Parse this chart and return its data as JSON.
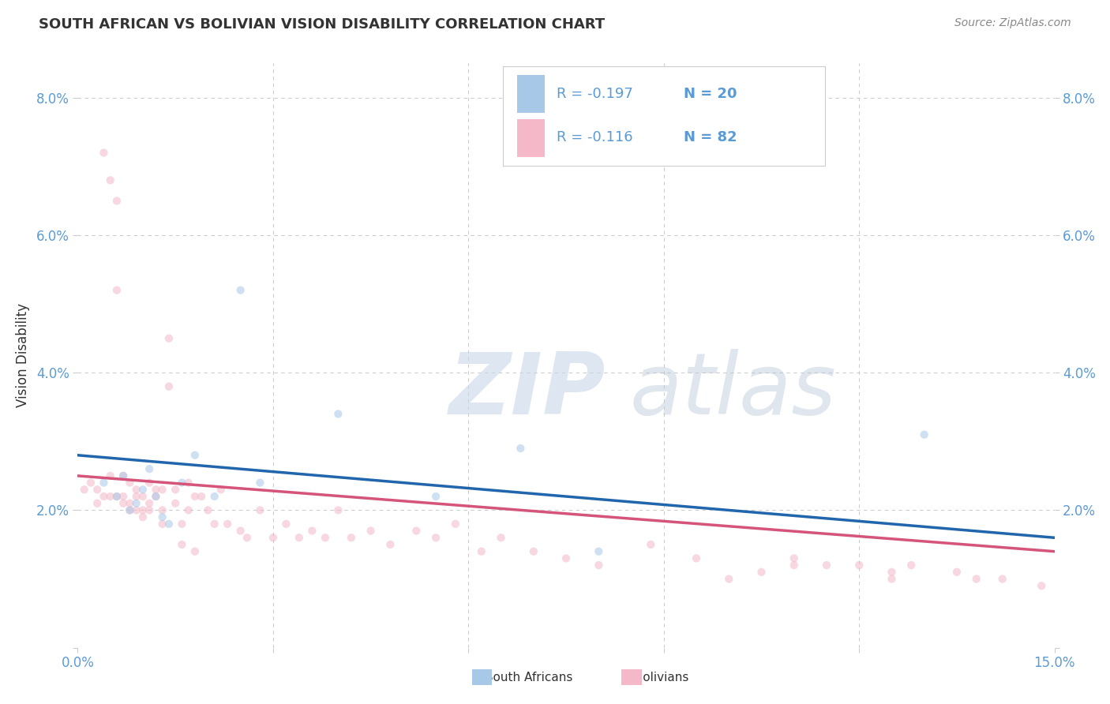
{
  "title": "SOUTH AFRICAN VS BOLIVIAN VISION DISABILITY CORRELATION CHART",
  "source": "Source: ZipAtlas.com",
  "ylabel": "Vision Disability",
  "xlim": [
    0.0,
    0.15
  ],
  "ylim": [
    0.0,
    0.085
  ],
  "xticks": [
    0.0,
    0.03,
    0.06,
    0.09,
    0.12,
    0.15
  ],
  "yticks": [
    0.0,
    0.02,
    0.04,
    0.06,
    0.08
  ],
  "ytick_labels": [
    "",
    "2.0%",
    "4.0%",
    "6.0%",
    "8.0%"
  ],
  "xtick_labels": [
    "0.0%",
    "",
    "",
    "",
    "",
    "15.0%"
  ],
  "legend_r_blue": "R = -0.197",
  "legend_n_blue": "N = 20",
  "legend_r_pink": "R = -0.116",
  "legend_n_pink": "N = 82",
  "blue_color": "#a8c8e8",
  "pink_color": "#f4b8c8",
  "blue_line_color": "#2166ac",
  "pink_line_color": "#d4547a",
  "blue_trend_x0": 0.0,
  "blue_trend_y0": 0.028,
  "blue_trend_x1": 0.15,
  "blue_trend_y1": 0.016,
  "pink_trend_x0": 0.0,
  "pink_trend_y0": 0.025,
  "pink_trend_x1": 0.15,
  "pink_trend_y1": 0.014,
  "blue_scatter_x": [
    0.004,
    0.006,
    0.007,
    0.008,
    0.009,
    0.01,
    0.011,
    0.012,
    0.013,
    0.014,
    0.016,
    0.018,
    0.021,
    0.025,
    0.028,
    0.04,
    0.055,
    0.068,
    0.08,
    0.13
  ],
  "blue_scatter_y": [
    0.024,
    0.022,
    0.025,
    0.02,
    0.021,
    0.023,
    0.026,
    0.022,
    0.019,
    0.018,
    0.024,
    0.028,
    0.022,
    0.052,
    0.024,
    0.034,
    0.022,
    0.029,
    0.014,
    0.031
  ],
  "pink_scatter_x": [
    0.001,
    0.002,
    0.003,
    0.003,
    0.004,
    0.004,
    0.005,
    0.005,
    0.005,
    0.006,
    0.006,
    0.006,
    0.007,
    0.007,
    0.007,
    0.008,
    0.008,
    0.008,
    0.009,
    0.009,
    0.009,
    0.01,
    0.01,
    0.01,
    0.011,
    0.011,
    0.011,
    0.012,
    0.012,
    0.013,
    0.013,
    0.013,
    0.014,
    0.014,
    0.015,
    0.015,
    0.016,
    0.016,
    0.017,
    0.017,
    0.018,
    0.018,
    0.019,
    0.02,
    0.021,
    0.022,
    0.023,
    0.025,
    0.026,
    0.028,
    0.03,
    0.032,
    0.034,
    0.036,
    0.038,
    0.04,
    0.042,
    0.045,
    0.048,
    0.052,
    0.055,
    0.058,
    0.062,
    0.065,
    0.07,
    0.075,
    0.08,
    0.088,
    0.095,
    0.1,
    0.105,
    0.11,
    0.115,
    0.12,
    0.125,
    0.128,
    0.135,
    0.138,
    0.142,
    0.148,
    0.11,
    0.125
  ],
  "pink_scatter_y": [
    0.023,
    0.024,
    0.021,
    0.023,
    0.022,
    0.072,
    0.068,
    0.022,
    0.025,
    0.065,
    0.052,
    0.022,
    0.025,
    0.022,
    0.021,
    0.024,
    0.021,
    0.02,
    0.02,
    0.022,
    0.023,
    0.02,
    0.022,
    0.019,
    0.024,
    0.02,
    0.021,
    0.022,
    0.023,
    0.02,
    0.018,
    0.023,
    0.045,
    0.038,
    0.023,
    0.021,
    0.018,
    0.015,
    0.024,
    0.02,
    0.022,
    0.014,
    0.022,
    0.02,
    0.018,
    0.023,
    0.018,
    0.017,
    0.016,
    0.02,
    0.016,
    0.018,
    0.016,
    0.017,
    0.016,
    0.02,
    0.016,
    0.017,
    0.015,
    0.017,
    0.016,
    0.018,
    0.014,
    0.016,
    0.014,
    0.013,
    0.012,
    0.015,
    0.013,
    0.01,
    0.011,
    0.013,
    0.012,
    0.012,
    0.01,
    0.012,
    0.011,
    0.01,
    0.01,
    0.009,
    0.012,
    0.011
  ],
  "watermark_text1": "ZIP",
  "watermark_text2": "atlas",
  "background_color": "#ffffff",
  "grid_color": "#cccccc",
  "marker_size": 55,
  "marker_alpha": 0.55,
  "title_color": "#333333",
  "axis_color": "#5b9bd5",
  "source_color": "#888888"
}
